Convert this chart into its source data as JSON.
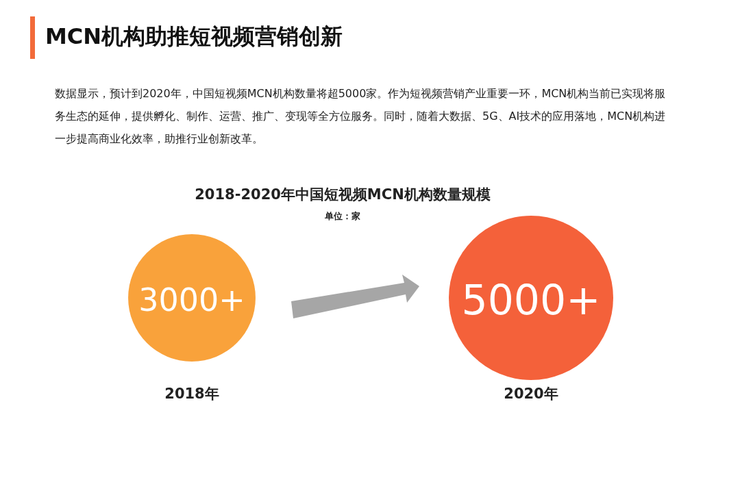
{
  "chart_data": {
    "type": "other",
    "title": "MCN机构助推短视频营销创新",
    "subtitle": "2018-2020年中国短视频MCN机构数量规模",
    "annotations": [
      "数据显示，预计到2020年，中国短视频MCN机构数量将超5000家。作为短视频营销产业重要一环，MCN机构当前已实现将服务生态的延伸，提供孵化、制作、运营、推广、变现等全方位服务。同时，随着大数据、5G、AI技术的应用落地，MCN机构进一步提高商业化效率，助推行业创新改革。",
      "单位：家"
    ],
    "categories": [
      "2018年",
      "2020年"
    ],
    "values": [
      3000,
      5000
    ],
    "value_labels": [
      "3000+",
      "5000+"
    ],
    "colors": [
      "#f9a23b",
      "#f4613a"
    ]
  }
}
